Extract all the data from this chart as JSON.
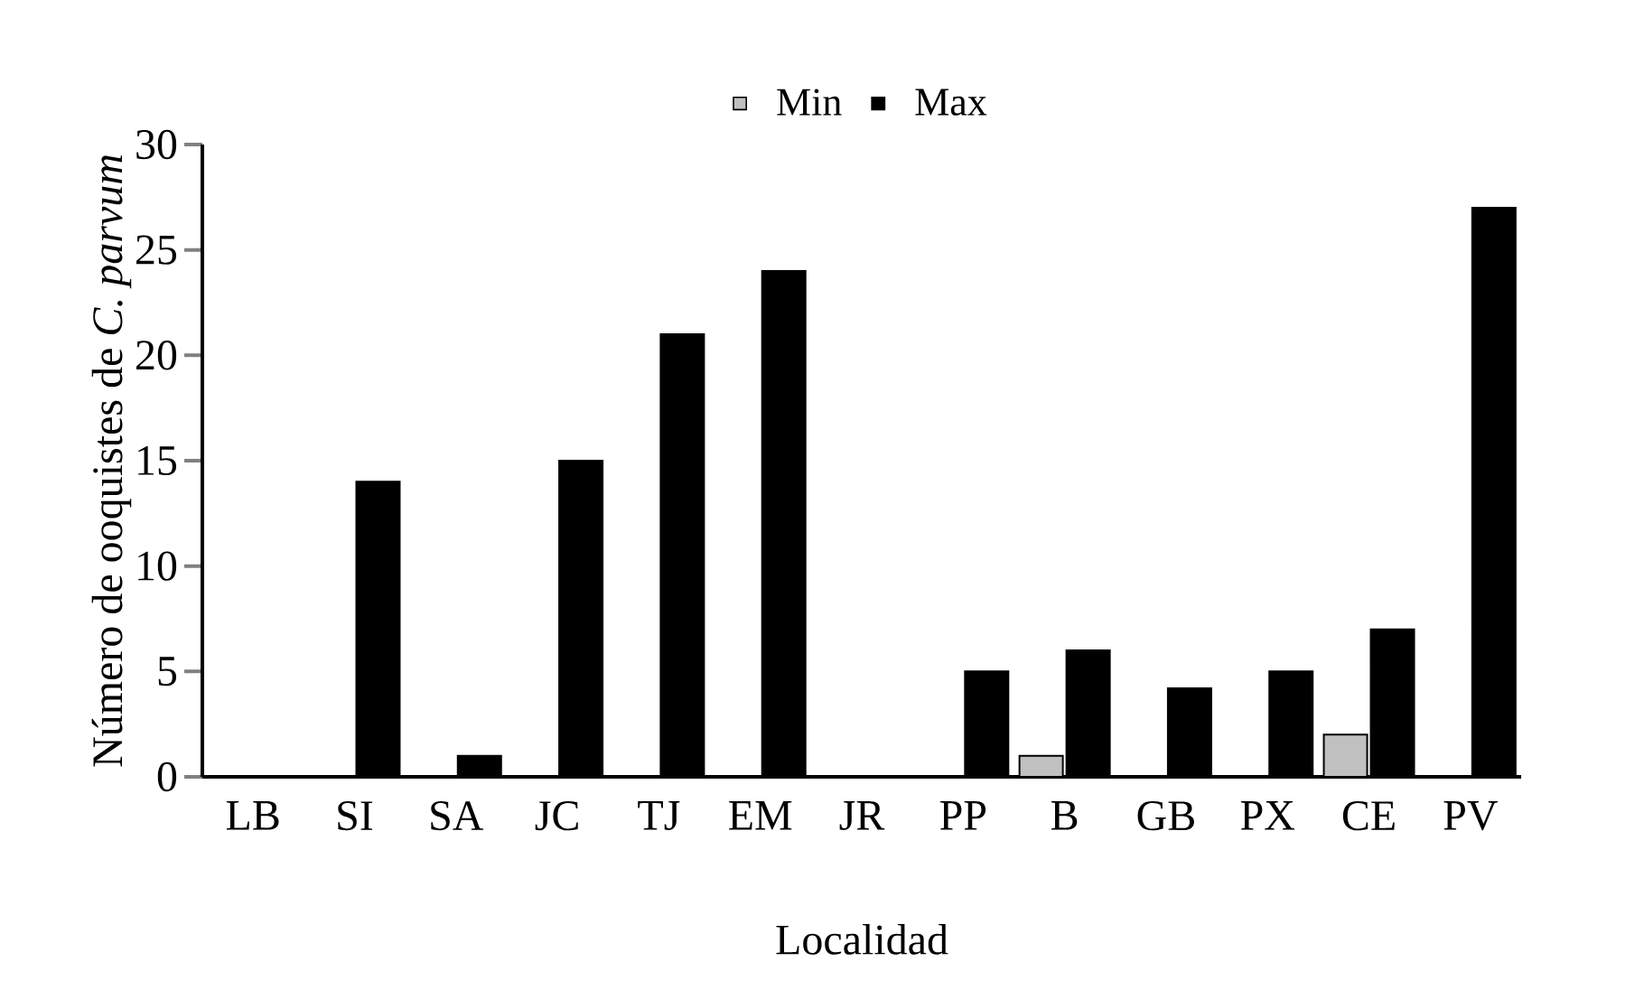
{
  "chart_data": {
    "type": "bar",
    "xlabel": "Localidad",
    "ylabel": "Número de ooquistes de *C. parvum*",
    "categories": [
      "LB",
      "SI",
      "SA",
      "JC",
      "TJ",
      "EM",
      "JR",
      "PP",
      "B",
      "GB",
      "PX",
      "CE",
      "PV"
    ],
    "series": [
      {
        "name": "Min",
        "color": "#c0c0c0",
        "values": [
          0,
          0,
          0,
          0,
          0,
          0,
          0,
          0,
          1,
          0,
          0,
          2,
          0
        ]
      },
      {
        "name": "Max",
        "color": "#000000",
        "values": [
          0,
          14,
          1,
          15,
          21,
          24,
          0,
          5,
          6,
          4.2,
          5,
          7,
          27
        ]
      }
    ],
    "ylim": [
      0,
      30
    ],
    "yticks": [
      0,
      5,
      10,
      15,
      20,
      25,
      30
    ],
    "grid": false,
    "legend": "top"
  }
}
